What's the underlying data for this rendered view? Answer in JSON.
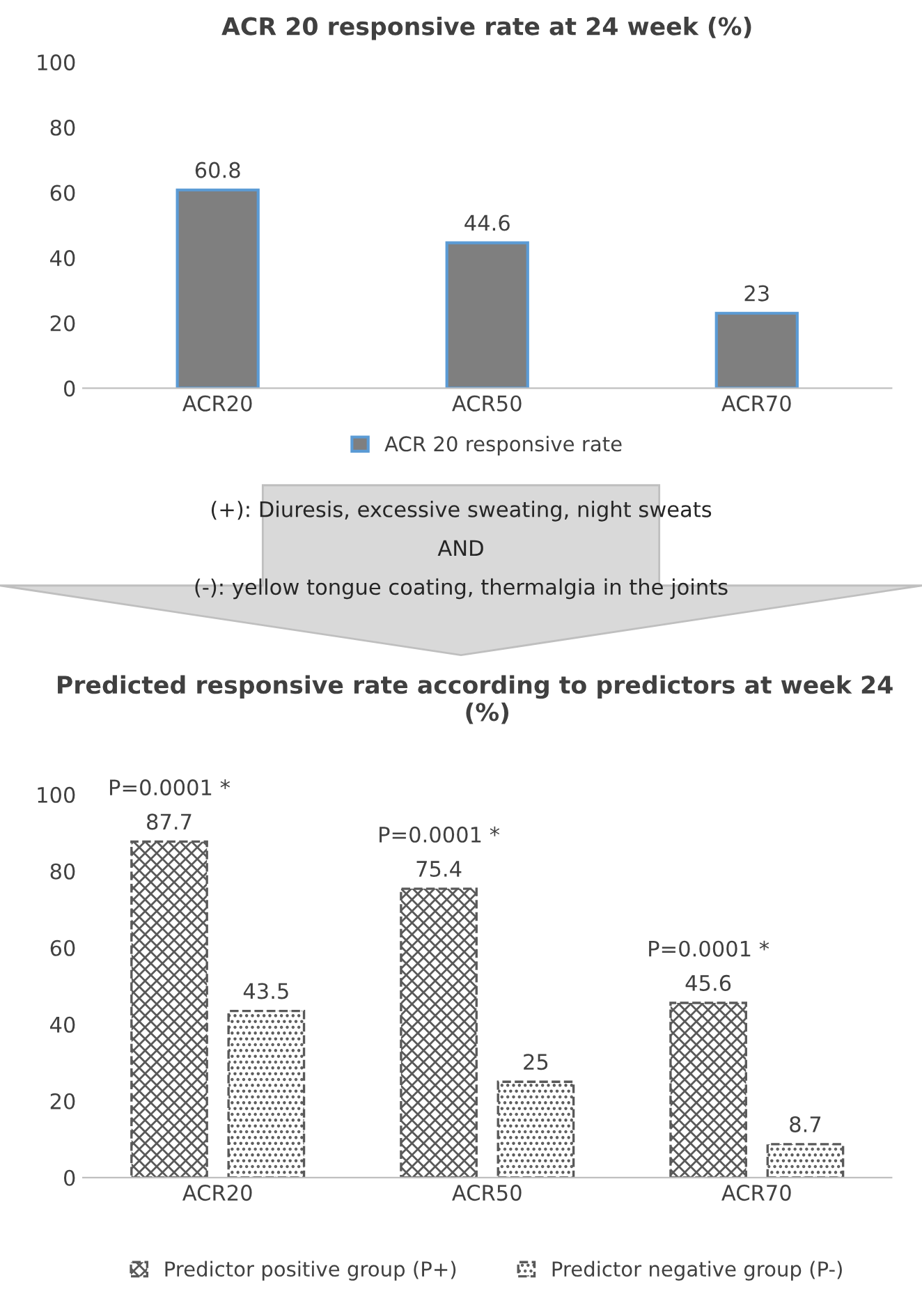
{
  "chart_data": [
    {
      "type": "bar",
      "title": "ACR 20 responsive rate at 24 week (%)",
      "categories": [
        "ACR20",
        "ACR50",
        "ACR70"
      ],
      "series": [
        {
          "name": "ACR 20 responsive rate",
          "color": "#7f7f7f",
          "values": [
            60.8,
            44.6,
            23
          ]
        }
      ],
      "ylim": [
        0,
        100
      ],
      "yticks": [
        0,
        20,
        40,
        60,
        80,
        100
      ],
      "data_labels": true,
      "legend": "bottom",
      "grid": false
    },
    {
      "type": "other",
      "annotations": [
        "(+): Diuresis, excessive sweating, night sweats",
        "AND",
        "(-): yellow tongue coating, thermalgia in the joints"
      ]
    },
    {
      "type": "bar",
      "title": "Predicted responsive rate according to predictors at week 24    (%)",
      "categories": [
        "ACR20",
        "ACR50",
        "ACR70"
      ],
      "series": [
        {
          "name": "Predictor positive group (P+)",
          "color": "#595959",
          "values": [
            87.7,
            75.4,
            45.6
          ]
        },
        {
          "name": "Predictor negative group (P-)",
          "color": "#595959",
          "values": [
            43.5,
            25,
            8.7
          ]
        }
      ],
      "ylim": [
        0,
        100
      ],
      "yticks": [
        0,
        20,
        40,
        60,
        80,
        100
      ],
      "data_labels": true,
      "legend": "bottom",
      "grid": false,
      "annotations": [
        "P=0.0001 *",
        "P=0.0001 *",
        "P=0.0001 *"
      ]
    }
  ]
}
